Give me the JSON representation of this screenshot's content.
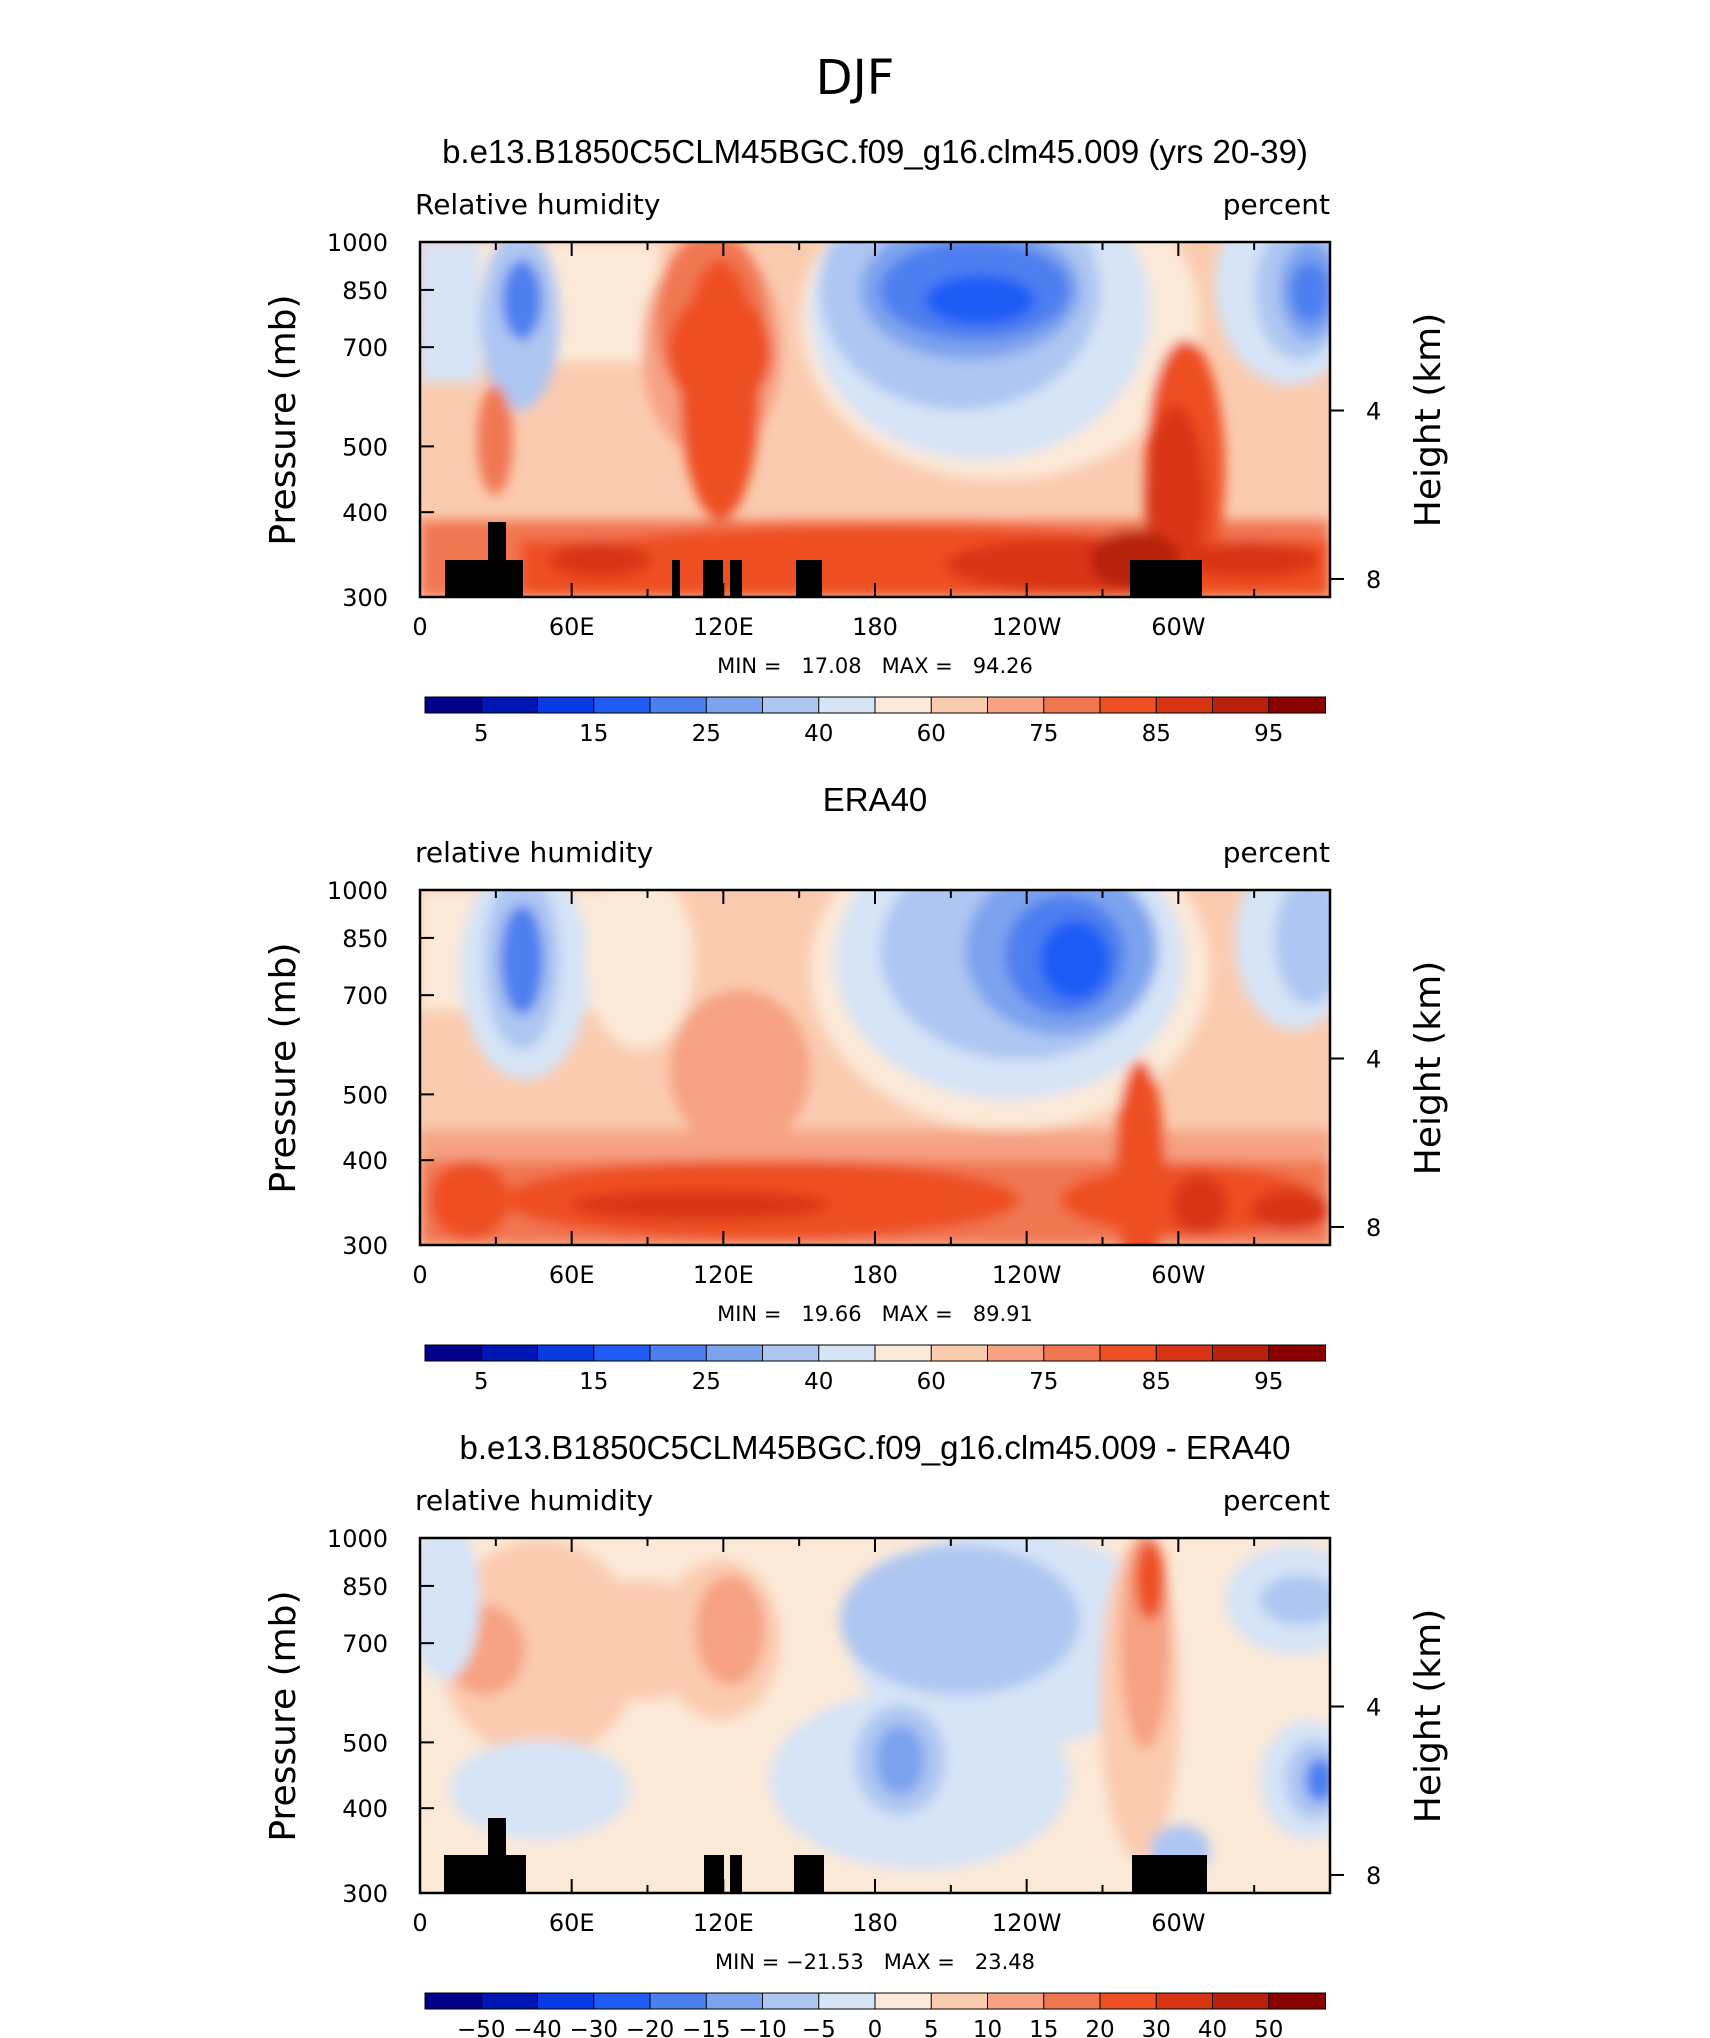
{
  "main_title": "DJF",
  "chart_data": [
    {
      "type": "heatmap",
      "title": "b.e13.B1850C5CLM45BGC.f09_g16.clm45.009 (yrs 20-39)",
      "left_label": "Relative humidity",
      "right_label": "percent",
      "ylabel": "Pressure (mb)",
      "y2label": "Height (km)",
      "x_ticks": [
        "0",
        "60E",
        "120E",
        "180",
        "120W",
        "60W"
      ],
      "y_ticks": [
        "300",
        "400",
        "500",
        "700",
        "850",
        "1000"
      ],
      "y2_ticks": [
        "8",
        "4"
      ],
      "minmax": "MIN =   17.08   MAX =   94.26",
      "colorbar_labels": [
        "5",
        "15",
        "25",
        "40",
        "60",
        "75",
        "85",
        "95"
      ],
      "colorbar_colors": [
        "#00008b",
        "#0016b4",
        "#0a3be0",
        "#1f5cf5",
        "#4d7ff0",
        "#7da3ee",
        "#aec6f2",
        "#d6e4f6",
        "#fbe9d8",
        "#fbcbb0",
        "#f6a283",
        "#f17752",
        "#ee4f24",
        "#d83514",
        "#b8200b",
        "#8b0000"
      ],
      "colorbar_range": [
        0,
        100
      ],
      "x_range": [
        0,
        360
      ],
      "y_range": [
        1000,
        300
      ],
      "value_range": [
        17.08,
        94.26
      ]
    },
    {
      "type": "heatmap",
      "title": "ERA40",
      "left_label": "relative humidity",
      "right_label": "percent",
      "ylabel": "Pressure (mb)",
      "y2label": "Height (km)",
      "x_ticks": [
        "0",
        "60E",
        "120E",
        "180",
        "120W",
        "60W"
      ],
      "y_ticks": [
        "300",
        "400",
        "500",
        "700",
        "850",
        "1000"
      ],
      "y2_ticks": [
        "8",
        "4"
      ],
      "minmax": "MIN =   19.66   MAX =   89.91",
      "colorbar_labels": [
        "5",
        "15",
        "25",
        "40",
        "60",
        "75",
        "85",
        "95"
      ],
      "colorbar_colors": [
        "#00008b",
        "#0016b4",
        "#0a3be0",
        "#1f5cf5",
        "#4d7ff0",
        "#7da3ee",
        "#aec6f2",
        "#d6e4f6",
        "#fbe9d8",
        "#fbcbb0",
        "#f6a283",
        "#f17752",
        "#ee4f24",
        "#d83514",
        "#b8200b",
        "#8b0000"
      ],
      "colorbar_range": [
        0,
        100
      ],
      "x_range": [
        0,
        360
      ],
      "y_range": [
        1000,
        300
      ],
      "value_range": [
        19.66,
        89.91
      ]
    },
    {
      "type": "heatmap",
      "title": "b.e13.B1850C5CLM45BGC.f09_g16.clm45.009 - ERA40",
      "left_label": "relative humidity",
      "right_label": "percent",
      "ylabel": "Pressure (mb)",
      "y2label": "Height (km)",
      "x_ticks": [
        "0",
        "60E",
        "120E",
        "180",
        "120W",
        "60W"
      ],
      "y_ticks": [
        "300",
        "400",
        "500",
        "700",
        "850",
        "1000"
      ],
      "y2_ticks": [
        "8",
        "4"
      ],
      "minmax": "MIN = −21.53   MAX =   23.48",
      "colorbar_labels": [
        "−50",
        "−40",
        "−30",
        "−20",
        "−15",
        "−10",
        "−5",
        "0",
        "5",
        "10",
        "15",
        "20",
        "30",
        "40",
        "50"
      ],
      "colorbar_colors": [
        "#00008b",
        "#0016b4",
        "#0a3be0",
        "#1f5cf5",
        "#4d7ff0",
        "#7da3ee",
        "#aec6f2",
        "#d6e4f6",
        "#fbe9d8",
        "#fbcbb0",
        "#f6a283",
        "#f17752",
        "#ee4f24",
        "#d83514",
        "#b8200b",
        "#8b0000"
      ],
      "colorbar_range": [
        -60,
        60
      ],
      "x_range": [
        0,
        360
      ],
      "y_range": [
        1000,
        300
      ],
      "value_range": [
        -21.53,
        23.48
      ]
    }
  ]
}
